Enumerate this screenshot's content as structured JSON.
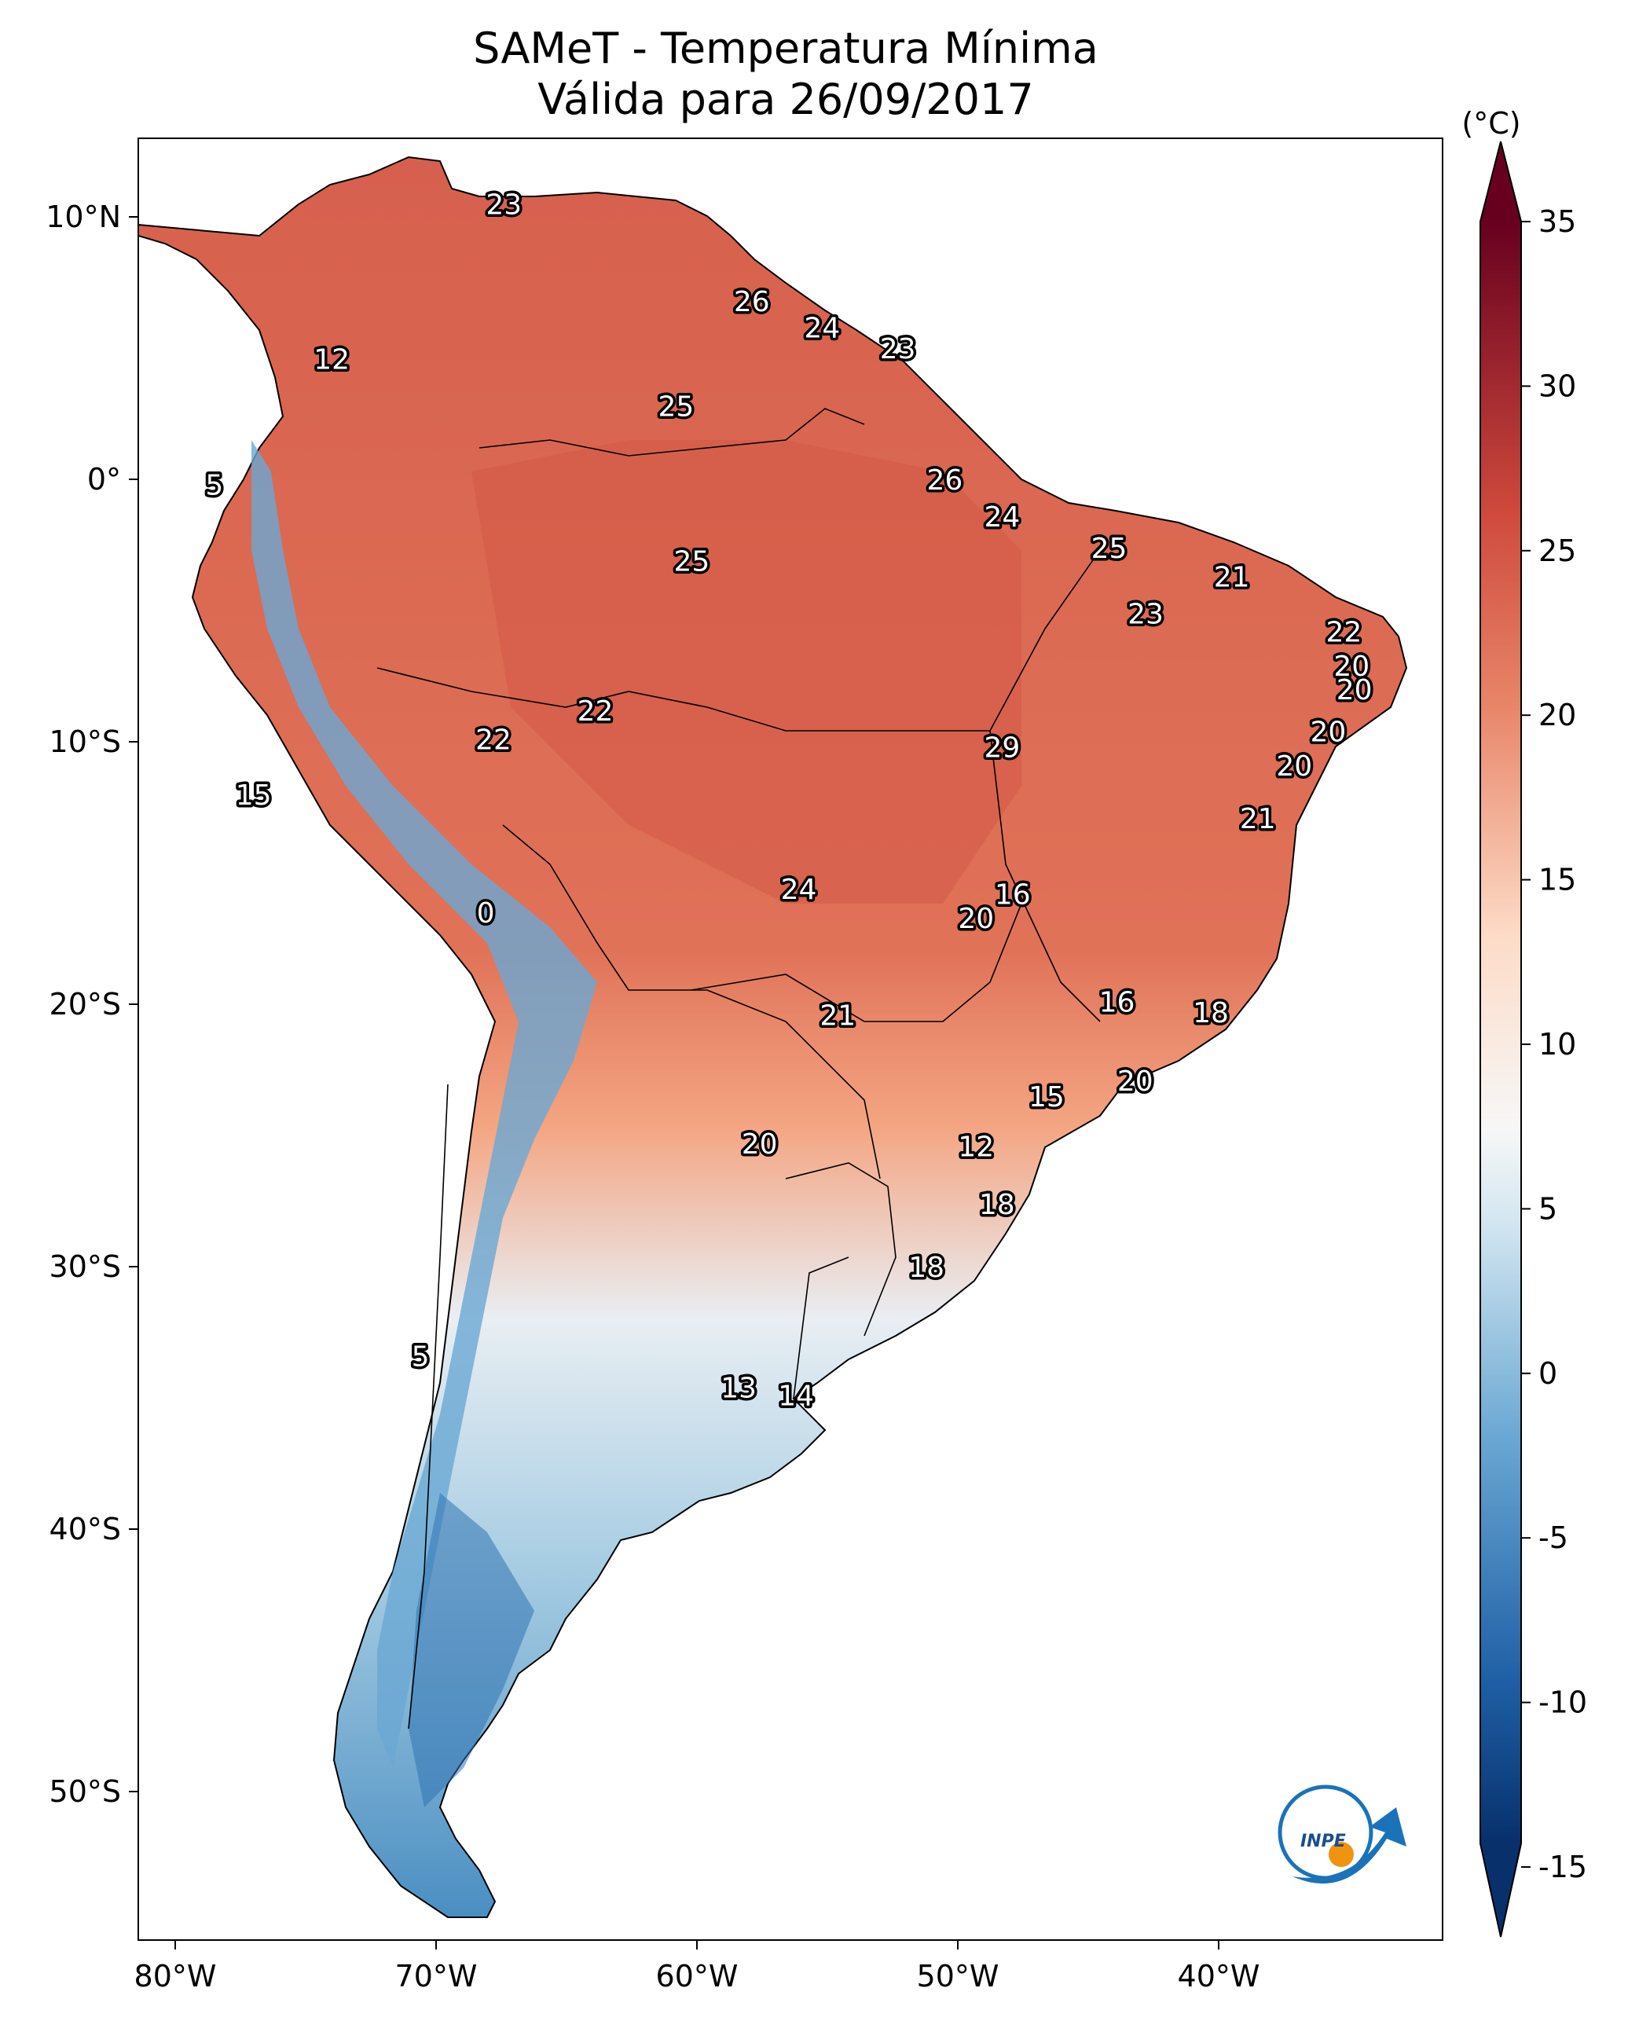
{
  "title": {
    "line1": "SAMeT - Temperatura Mínima",
    "line2": "Válida para 26/09/2017"
  },
  "map": {
    "lat_ticks": [
      "10°N",
      "0°",
      "10°S",
      "20°S",
      "30°S",
      "40°S",
      "50°S"
    ],
    "lon_ticks": [
      "80°W",
      "70°W",
      "60°W",
      "50°W",
      "40°W"
    ],
    "colorbar": {
      "unit": "(°C)",
      "ticks": [
        "35",
        "30",
        "25",
        "20",
        "15",
        "10",
        "5",
        "0",
        "-5",
        "-10",
        "-15"
      ],
      "colors": {
        "cold": "#08306b",
        "mid": "#f7f7f7",
        "warm": "#67001f"
      }
    },
    "station_values": [
      {
        "lon": -67.4,
        "lat": 10.5,
        "label": "23"
      },
      {
        "lon": -57.9,
        "lat": 6.8,
        "label": "26"
      },
      {
        "lon": -55.2,
        "lat": 5.8,
        "label": "24"
      },
      {
        "lon": -52.3,
        "lat": 5.0,
        "label": "23"
      },
      {
        "lon": -74.0,
        "lat": 4.6,
        "label": "12"
      },
      {
        "lon": -60.8,
        "lat": 2.8,
        "label": "25"
      },
      {
        "lon": -78.5,
        "lat": -0.2,
        "label": "5"
      },
      {
        "lon": -50.5,
        "lat": 0.0,
        "label": "26"
      },
      {
        "lon": -48.3,
        "lat": -1.4,
        "label": "24"
      },
      {
        "lon": -60.2,
        "lat": -3.1,
        "label": "25"
      },
      {
        "lon": -44.2,
        "lat": -2.6,
        "label": "25"
      },
      {
        "lon": -39.5,
        "lat": -3.7,
        "label": "21"
      },
      {
        "lon": -42.8,
        "lat": -5.1,
        "label": "23"
      },
      {
        "lon": -35.2,
        "lat": -5.8,
        "label": "22"
      },
      {
        "lon": -34.9,
        "lat": -7.1,
        "label": "20"
      },
      {
        "lon": -34.8,
        "lat": -8.0,
        "label": "20"
      },
      {
        "lon": -63.9,
        "lat": -8.8,
        "label": "22"
      },
      {
        "lon": -67.8,
        "lat": -9.9,
        "label": "22"
      },
      {
        "lon": -48.3,
        "lat": -10.2,
        "label": "29"
      },
      {
        "lon": -35.8,
        "lat": -9.6,
        "label": "20"
      },
      {
        "lon": -37.1,
        "lat": -10.9,
        "label": "20"
      },
      {
        "lon": -38.5,
        "lat": -12.9,
        "label": "21"
      },
      {
        "lon": -77.0,
        "lat": -12.0,
        "label": "15"
      },
      {
        "lon": -68.1,
        "lat": -16.5,
        "label": "0"
      },
      {
        "lon": -56.1,
        "lat": -15.6,
        "label": "24"
      },
      {
        "lon": -47.9,
        "lat": -15.8,
        "label": "16"
      },
      {
        "lon": -49.3,
        "lat": -16.7,
        "label": "20"
      },
      {
        "lon": -43.9,
        "lat": -19.9,
        "label": "16"
      },
      {
        "lon": -40.3,
        "lat": -20.3,
        "label": "18"
      },
      {
        "lon": -54.6,
        "lat": -20.4,
        "label": "21"
      },
      {
        "lon": -43.2,
        "lat": -22.9,
        "label": "20"
      },
      {
        "lon": -46.6,
        "lat": -23.5,
        "label": "15"
      },
      {
        "lon": -49.3,
        "lat": -25.4,
        "label": "12"
      },
      {
        "lon": -57.6,
        "lat": -25.3,
        "label": "20"
      },
      {
        "lon": -48.5,
        "lat": -27.6,
        "label": "18"
      },
      {
        "lon": -51.2,
        "lat": -30.0,
        "label": "18"
      },
      {
        "lon": -70.6,
        "lat": -33.4,
        "label": "5"
      },
      {
        "lon": -58.4,
        "lat": -34.6,
        "label": "13"
      },
      {
        "lon": -56.2,
        "lat": -34.9,
        "label": "14"
      }
    ]
  },
  "logo": {
    "text": "INPE"
  }
}
